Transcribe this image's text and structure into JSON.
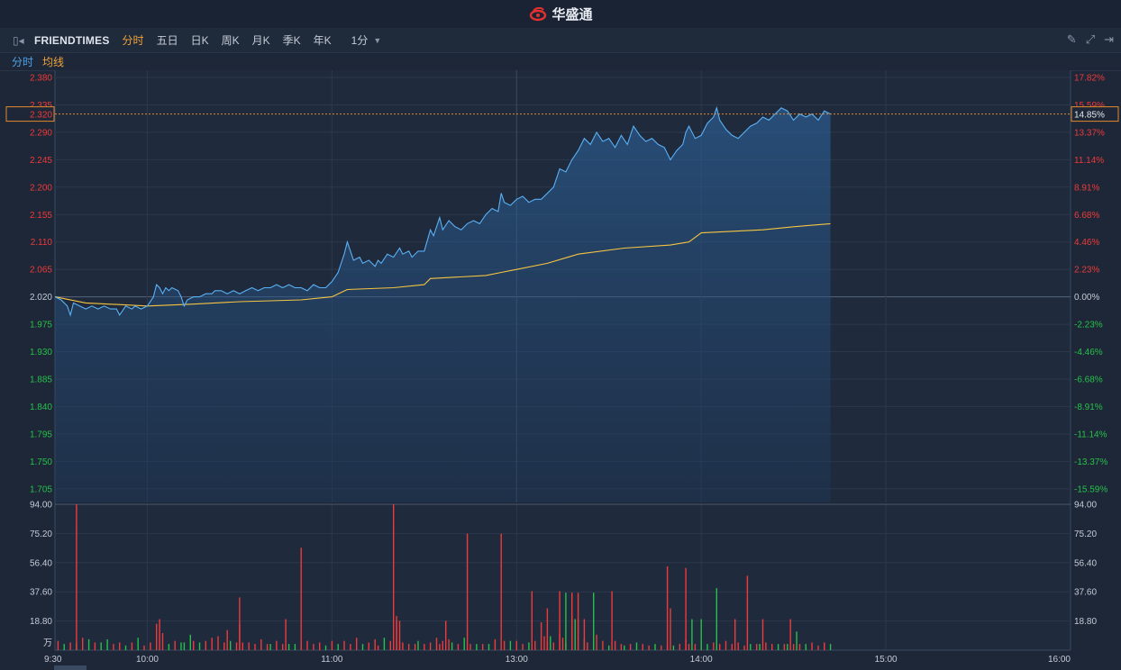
{
  "app": {
    "title": "华盛通"
  },
  "toolbar": {
    "symbol": "FRIENDTIMES",
    "tabs": [
      "分时",
      "五日",
      "日K",
      "周K",
      "月K",
      "季K",
      "年K"
    ],
    "active_tab": "分时",
    "period": "1分"
  },
  "legend": {
    "price": "分时",
    "avg": "均线"
  },
  "colors": {
    "up": "#ee3a3a",
    "down": "#27c04a",
    "price_line": "#5ab0f5",
    "avg_line": "#f5c542",
    "grid": "#2b394d",
    "text_neutral": "#c5cbd6"
  },
  "chart_data": {
    "type": "line",
    "prev_close": 2.02,
    "price_axis": {
      "ticks": [
        "2.380",
        "2.335",
        "2.290",
        "2.245",
        "2.200",
        "2.155",
        "2.110",
        "2.065",
        "2.020",
        "1.975",
        "1.930",
        "1.885",
        "1.840",
        "1.795",
        "1.750",
        "1.705"
      ],
      "ylim": [
        1.6825,
        2.38
      ]
    },
    "pct_axis": {
      "ticks": [
        "17.82%",
        "15.59%",
        "13.37%",
        "11.14%",
        "8.91%",
        "6.68%",
        "4.46%",
        "2.23%",
        "0.00%",
        "-2.23%",
        "-4.46%",
        "-6.68%",
        "-8.91%",
        "-11.14%",
        "-13.37%",
        "-15.59%"
      ]
    },
    "current": {
      "price": "2.320",
      "pct": "14.85%"
    },
    "time_labels": [
      "9:30",
      "10:00",
      "11:00",
      "13:00",
      "14:00",
      "15:00",
      "16:00"
    ],
    "time_ticks_min": [
      0,
      30,
      90,
      150,
      210,
      270,
      330
    ],
    "total_minutes": 330,
    "price": {
      "name": "分时",
      "points": [
        [
          0,
          2.02
        ],
        [
          2,
          2.015
        ],
        [
          4,
          2.005
        ],
        [
          5,
          1.99
        ],
        [
          6,
          2.01
        ],
        [
          8,
          2.005
        ],
        [
          10,
          2.0
        ],
        [
          12,
          2.005
        ],
        [
          14,
          2.0
        ],
        [
          16,
          2.005
        ],
        [
          18,
          2.0
        ],
        [
          20,
          2.0
        ],
        [
          21,
          1.99
        ],
        [
          23,
          2.005
        ],
        [
          25,
          2.0
        ],
        [
          26,
          2.005
        ],
        [
          28,
          2.0
        ],
        [
          30,
          2.005
        ],
        [
          32,
          2.02
        ],
        [
          33,
          2.04
        ],
        [
          34,
          2.035
        ],
        [
          35,
          2.025
        ],
        [
          36,
          2.035
        ],
        [
          37,
          2.03
        ],
        [
          38,
          2.035
        ],
        [
          40,
          2.03
        ],
        [
          41,
          2.02
        ],
        [
          42,
          2.005
        ],
        [
          43,
          2.015
        ],
        [
          45,
          2.02
        ],
        [
          47,
          2.02
        ],
        [
          49,
          2.025
        ],
        [
          51,
          2.025
        ],
        [
          52,
          2.03
        ],
        [
          54,
          2.03
        ],
        [
          56,
          2.025
        ],
        [
          58,
          2.03
        ],
        [
          60,
          2.025
        ],
        [
          62,
          2.03
        ],
        [
          64,
          2.035
        ],
        [
          66,
          2.03
        ],
        [
          68,
          2.035
        ],
        [
          70,
          2.035
        ],
        [
          72,
          2.04
        ],
        [
          74,
          2.035
        ],
        [
          76,
          2.04
        ],
        [
          78,
          2.035
        ],
        [
          80,
          2.035
        ],
        [
          82,
          2.03
        ],
        [
          84,
          2.04
        ],
        [
          86,
          2.035
        ],
        [
          88,
          2.035
        ],
        [
          90,
          2.045
        ],
        [
          92,
          2.06
        ],
        [
          94,
          2.09
        ],
        [
          95,
          2.11
        ],
        [
          96,
          2.095
        ],
        [
          97,
          2.08
        ],
        [
          99,
          2.085
        ],
        [
          100,
          2.075
        ],
        [
          102,
          2.08
        ],
        [
          104,
          2.07
        ],
        [
          105,
          2.08
        ],
        [
          106,
          2.075
        ],
        [
          108,
          2.09
        ],
        [
          110,
          2.085
        ],
        [
          112,
          2.1
        ],
        [
          113,
          2.09
        ],
        [
          115,
          2.095
        ],
        [
          116,
          2.085
        ],
        [
          118,
          2.095
        ],
        [
          120,
          2.095
        ],
        [
          122,
          2.13
        ],
        [
          123,
          2.12
        ],
        [
          125,
          2.15
        ],
        [
          126,
          2.13
        ],
        [
          128,
          2.145
        ],
        [
          130,
          2.135
        ],
        [
          132,
          2.13
        ],
        [
          134,
          2.14
        ],
        [
          136,
          2.145
        ],
        [
          138,
          2.14
        ],
        [
          140,
          2.155
        ],
        [
          142,
          2.165
        ],
        [
          144,
          2.16
        ],
        [
          145,
          2.19
        ],
        [
          146,
          2.175
        ],
        [
          148,
          2.17
        ],
        [
          150,
          2.18
        ],
        [
          152,
          2.185
        ],
        [
          154,
          2.175
        ],
        [
          156,
          2.18
        ],
        [
          158,
          2.18
        ],
        [
          160,
          2.19
        ],
        [
          162,
          2.2
        ],
        [
          164,
          2.23
        ],
        [
          166,
          2.225
        ],
        [
          168,
          2.245
        ],
        [
          170,
          2.26
        ],
        [
          172,
          2.28
        ],
        [
          174,
          2.27
        ],
        [
          176,
          2.29
        ],
        [
          178,
          2.275
        ],
        [
          180,
          2.28
        ],
        [
          182,
          2.265
        ],
        [
          184,
          2.285
        ],
        [
          186,
          2.27
        ],
        [
          188,
          2.3
        ],
        [
          190,
          2.285
        ],
        [
          192,
          2.275
        ],
        [
          194,
          2.28
        ],
        [
          196,
          2.27
        ],
        [
          198,
          2.265
        ],
        [
          200,
          2.245
        ],
        [
          202,
          2.26
        ],
        [
          204,
          2.27
        ],
        [
          205,
          2.29
        ],
        [
          206,
          2.3
        ],
        [
          208,
          2.28
        ],
        [
          210,
          2.285
        ],
        [
          212,
          2.305
        ],
        [
          214,
          2.315
        ],
        [
          215,
          2.33
        ],
        [
          216,
          2.31
        ],
        [
          218,
          2.295
        ],
        [
          220,
          2.285
        ],
        [
          222,
          2.28
        ],
        [
          224,
          2.29
        ],
        [
          226,
          2.3
        ],
        [
          228,
          2.305
        ],
        [
          230,
          2.315
        ],
        [
          232,
          2.31
        ],
        [
          234,
          2.32
        ],
        [
          236,
          2.33
        ],
        [
          238,
          2.325
        ],
        [
          240,
          2.31
        ],
        [
          242,
          2.32
        ],
        [
          244,
          2.315
        ],
        [
          246,
          2.32
        ],
        [
          248,
          2.31
        ],
        [
          250,
          2.325
        ],
        [
          252,
          2.32
        ]
      ]
    },
    "avg": {
      "name": "均线",
      "points": [
        [
          0,
          2.02
        ],
        [
          10,
          2.01
        ],
        [
          30,
          2.005
        ],
        [
          45,
          2.008
        ],
        [
          60,
          2.012
        ],
        [
          80,
          2.015
        ],
        [
          90,
          2.02
        ],
        [
          95,
          2.032
        ],
        [
          110,
          2.035
        ],
        [
          120,
          2.04
        ],
        [
          122,
          2.05
        ],
        [
          140,
          2.055
        ],
        [
          145,
          2.06
        ],
        [
          150,
          2.065
        ],
        [
          160,
          2.075
        ],
        [
          170,
          2.09
        ],
        [
          185,
          2.1
        ],
        [
          200,
          2.105
        ],
        [
          206,
          2.11
        ],
        [
          210,
          2.125
        ],
        [
          230,
          2.13
        ],
        [
          240,
          2.135
        ],
        [
          252,
          2.14
        ]
      ]
    },
    "volume_axis": {
      "ticks": [
        "94.00",
        "75.20",
        "56.40",
        "37.60",
        "18.80"
      ],
      "unit": "万",
      "ymax": 94
    },
    "volume": [
      [
        1,
        6,
        "u"
      ],
      [
        3,
        4,
        "d"
      ],
      [
        5,
        5,
        "u"
      ],
      [
        7,
        5,
        "d"
      ],
      [
        9,
        8,
        "u"
      ],
      [
        11,
        7,
        "d"
      ],
      [
        13,
        5,
        "u"
      ],
      [
        15,
        5,
        "d"
      ],
      [
        17,
        7,
        "d"
      ],
      [
        19,
        4,
        "u"
      ],
      [
        21,
        5,
        "u"
      ],
      [
        23,
        3,
        "d"
      ],
      [
        25,
        5,
        "u"
      ],
      [
        27,
        8,
        "d"
      ],
      [
        29,
        3,
        "u"
      ],
      [
        31,
        5,
        "u"
      ],
      [
        33,
        17,
        "u"
      ],
      [
        34,
        20,
        "u"
      ],
      [
        35,
        11,
        "u"
      ],
      [
        37,
        4,
        "d"
      ],
      [
        39,
        6,
        "u"
      ],
      [
        41,
        5,
        "d"
      ],
      [
        42,
        5,
        "d"
      ],
      [
        44,
        10,
        "d"
      ],
      [
        45,
        6,
        "u"
      ],
      [
        47,
        5,
        "d"
      ],
      [
        49,
        6,
        "u"
      ],
      [
        51,
        8,
        "u"
      ],
      [
        53,
        9,
        "u"
      ],
      [
        55,
        5,
        "u"
      ],
      [
        56,
        13,
        "u"
      ],
      [
        57,
        6,
        "d"
      ],
      [
        59,
        5,
        "u"
      ],
      [
        60,
        17,
        "u"
      ],
      [
        61,
        5,
        "u"
      ],
      [
        63,
        5,
        "u"
      ],
      [
        65,
        4,
        "u"
      ],
      [
        67,
        7,
        "u"
      ],
      [
        69,
        4,
        "u"
      ],
      [
        70,
        4,
        "d"
      ],
      [
        72,
        6,
        "u"
      ],
      [
        74,
        4,
        "u"
      ],
      [
        75,
        20,
        "u"
      ],
      [
        76,
        4,
        "d"
      ],
      [
        78,
        4,
        "d"
      ],
      [
        80,
        4,
        "u"
      ],
      [
        82,
        6,
        "u"
      ],
      [
        84,
        4,
        "u"
      ],
      [
        86,
        5,
        "u"
      ],
      [
        88,
        3,
        "d"
      ],
      [
        90,
        6,
        "u"
      ],
      [
        92,
        4,
        "d"
      ],
      [
        94,
        6,
        "u"
      ],
      [
        96,
        4,
        "u"
      ],
      [
        98,
        8,
        "u"
      ],
      [
        100,
        4,
        "d"
      ],
      [
        102,
        5,
        "u"
      ],
      [
        104,
        7,
        "u"
      ],
      [
        105,
        3,
        "u"
      ],
      [
        107,
        8,
        "d"
      ],
      [
        109,
        6,
        "u"
      ],
      [
        111,
        19,
        "u"
      ],
      [
        112,
        6,
        "u"
      ],
      [
        113,
        5,
        "u"
      ],
      [
        115,
        4,
        "u"
      ],
      [
        117,
        4,
        "u"
      ],
      [
        118,
        6,
        "d"
      ],
      [
        120,
        4,
        "u"
      ],
      [
        122,
        5,
        "u"
      ],
      [
        124,
        8,
        "u"
      ],
      [
        125,
        4,
        "u"
      ],
      [
        126,
        6,
        "u"
      ],
      [
        128,
        7,
        "u"
      ],
      [
        129,
        5,
        "d"
      ],
      [
        131,
        4,
        "u"
      ],
      [
        133,
        8,
        "d"
      ],
      [
        135,
        4,
        "u"
      ],
      [
        137,
        4,
        "d"
      ],
      [
        139,
        4,
        "u"
      ],
      [
        141,
        4,
        "d"
      ],
      [
        143,
        7,
        "u"
      ],
      [
        145,
        75,
        "u"
      ],
      [
        146,
        6,
        "u"
      ],
      [
        148,
        6,
        "d"
      ],
      [
        150,
        6,
        "u"
      ],
      [
        152,
        4,
        "u"
      ],
      [
        154,
        5,
        "d"
      ],
      [
        156,
        6,
        "u"
      ],
      [
        158,
        18,
        "u"
      ],
      [
        159,
        9,
        "u"
      ],
      [
        160,
        5,
        "u"
      ],
      [
        161,
        9,
        "d"
      ],
      [
        162,
        5,
        "u"
      ],
      [
        164,
        11,
        "u"
      ],
      [
        165,
        8,
        "u"
      ],
      [
        166,
        5,
        "u"
      ],
      [
        168,
        22,
        "u"
      ],
      [
        170,
        37,
        "u"
      ],
      [
        172,
        7,
        "d"
      ],
      [
        173,
        5,
        "u"
      ],
      [
        175,
        37,
        "d"
      ],
      [
        176,
        10,
        "u"
      ],
      [
        178,
        6,
        "u"
      ],
      [
        180,
        3,
        "d"
      ],
      [
        182,
        6,
        "u"
      ],
      [
        184,
        4,
        "u"
      ],
      [
        185,
        3,
        "d"
      ],
      [
        187,
        4,
        "u"
      ],
      [
        189,
        5,
        "d"
      ],
      [
        191,
        4,
        "u"
      ],
      [
        193,
        3,
        "u"
      ],
      [
        195,
        4,
        "d"
      ],
      [
        197,
        3,
        "u"
      ],
      [
        199,
        4,
        "u"
      ],
      [
        201,
        3,
        "d"
      ],
      [
        203,
        4,
        "u"
      ],
      [
        205,
        7,
        "u"
      ],
      [
        206,
        4,
        "u"
      ],
      [
        208,
        4,
        "u"
      ],
      [
        210,
        4,
        "u"
      ],
      [
        212,
        4,
        "d"
      ],
      [
        214,
        5,
        "u"
      ],
      [
        215,
        40,
        "d"
      ],
      [
        216,
        4,
        "u"
      ],
      [
        218,
        6,
        "u"
      ],
      [
        220,
        4,
        "u"
      ],
      [
        222,
        5,
        "u"
      ],
      [
        224,
        3,
        "u"
      ],
      [
        225,
        48,
        "u"
      ],
      [
        226,
        4,
        "d"
      ],
      [
        228,
        4,
        "u"
      ],
      [
        229,
        4,
        "d"
      ],
      [
        231,
        5,
        "u"
      ],
      [
        233,
        4,
        "u"
      ],
      [
        235,
        4,
        "d"
      ],
      [
        237,
        4,
        "u"
      ],
      [
        238,
        4,
        "d"
      ],
      [
        240,
        4,
        "u"
      ],
      [
        242,
        4,
        "u"
      ],
      [
        244,
        4,
        "d"
      ],
      [
        246,
        5,
        "u"
      ],
      [
        248,
        3,
        "u"
      ],
      [
        250,
        4,
        "u"
      ],
      [
        252,
        4,
        "d"
      ]
    ],
    "volume_highlights": [
      [
        7,
        94,
        "u"
      ],
      [
        60,
        34,
        "u"
      ],
      [
        80,
        66,
        "u"
      ],
      [
        110,
        94,
        "u"
      ],
      [
        111,
        22,
        "u"
      ],
      [
        112,
        19,
        "u"
      ],
      [
        127,
        19,
        "u"
      ],
      [
        134,
        75,
        "u"
      ],
      [
        155,
        38,
        "u"
      ],
      [
        160,
        27,
        "u"
      ],
      [
        164,
        38,
        "u"
      ],
      [
        166,
        37,
        "d"
      ],
      [
        168,
        37,
        "u"
      ],
      [
        169,
        20,
        "d"
      ],
      [
        170,
        20,
        "u"
      ],
      [
        172,
        20,
        "u"
      ],
      [
        181,
        38,
        "u"
      ],
      [
        199,
        54,
        "u"
      ],
      [
        200,
        27,
        "u"
      ],
      [
        205,
        53,
        "u"
      ],
      [
        207,
        20,
        "d"
      ],
      [
        210,
        20,
        "d"
      ],
      [
        221,
        20,
        "u"
      ],
      [
        230,
        20,
        "u"
      ],
      [
        239,
        20,
        "u"
      ],
      [
        241,
        12,
        "d"
      ],
      [
        250,
        5,
        "u"
      ]
    ]
  }
}
